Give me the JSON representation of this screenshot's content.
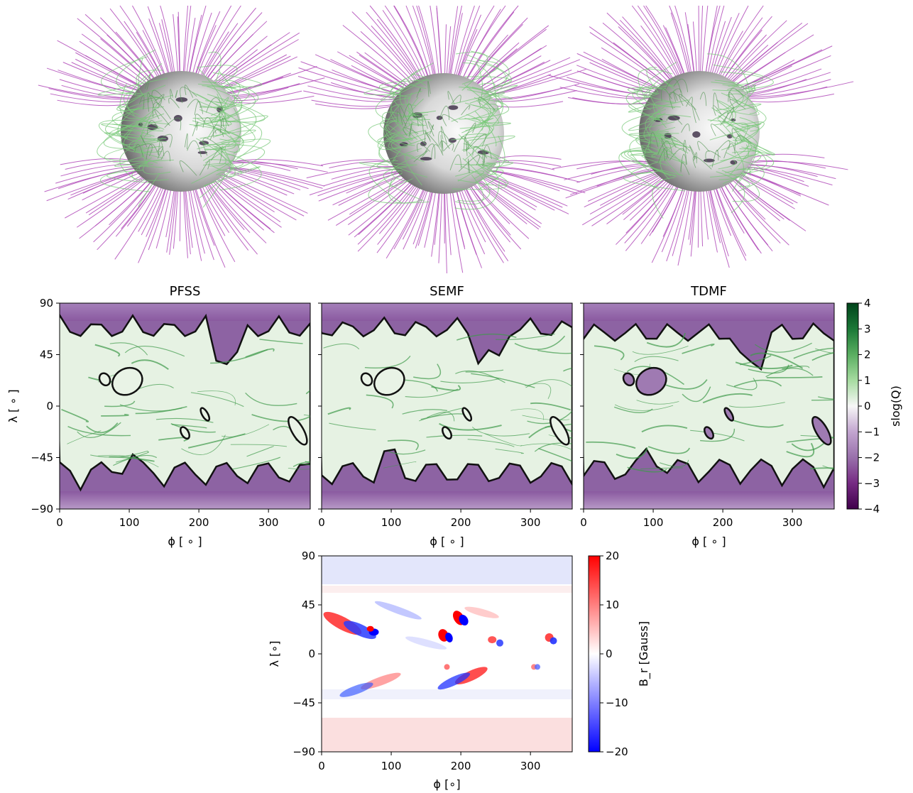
{
  "chart_data": [
    {
      "type": "illustration",
      "description_label": "",
      "panels": [
        {
          "name": "PFSS-fieldlines"
        },
        {
          "name": "SEMF-fieldlines"
        },
        {
          "name": "TDMF-fieldlines"
        }
      ],
      "colors": {
        "open": "#b04ab8",
        "closed": "#78c878",
        "sphere": "#bdbdbd"
      }
    },
    {
      "type": "heatmap",
      "panels": [
        {
          "title": "PFSS"
        },
        {
          "title": "SEMF"
        },
        {
          "title": "TDMF"
        }
      ],
      "xlabel": "ϕ [ ∘ ]",
      "ylabel": "λ [ ∘ ]",
      "xlim": [
        0,
        360
      ],
      "ylim": [
        -90,
        90
      ],
      "xticks": [
        "0",
        "100",
        "200",
        "300"
      ],
      "yticks": [
        "90",
        "45",
        "0",
        "−45",
        "−90"
      ],
      "colorbar": {
        "label": "slog(Q)",
        "range": [
          -4,
          4
        ],
        "ticks": [
          "4",
          "3",
          "2",
          "1",
          "0",
          "−1",
          "−2",
          "−3",
          "−4"
        ],
        "colormap": "PRGn"
      }
    },
    {
      "type": "heatmap",
      "xlabel": "ϕ [∘]",
      "ylabel": "λ [∘]",
      "xlim": [
        0,
        360
      ],
      "ylim": [
        -90,
        90
      ],
      "xticks": [
        "0",
        "100",
        "200",
        "300"
      ],
      "yticks": [
        "90",
        "45",
        "0",
        "−45",
        "−90"
      ],
      "colorbar": {
        "label": "B_r [Gauss]",
        "range": [
          -20,
          20
        ],
        "ticks": [
          "20",
          "10",
          "0",
          "−10",
          "−20"
        ],
        "colormap": "bwr"
      }
    }
  ]
}
